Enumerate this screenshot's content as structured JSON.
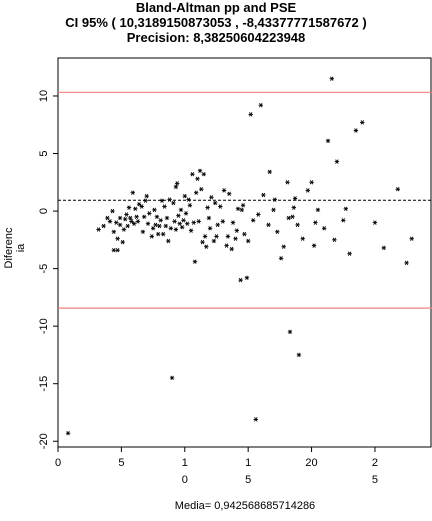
{
  "chart_data": {
    "type": "scatter",
    "title": "Bland-Altman  pp and PSE",
    "subtitle": "CI 95% ( 10,3189150873053 , -8,43377771587672 )",
    "precision_line": "Precision:  8,38250604223948",
    "xlabel": "Media= 0,942568685714286",
    "ylabel_lines": [
      "Diferenc",
      "ia"
    ],
    "ylim": [
      -20.5,
      13.3
    ],
    "xlim": [
      0,
      29.5
    ],
    "y_ticks": [
      {
        "value": 10,
        "label": "10"
      },
      {
        "value": 5,
        "label": "5"
      },
      {
        "value": 0,
        "label": "0"
      },
      {
        "value": -5,
        "label": "-5"
      },
      {
        "value": -10,
        "label": "-10"
      },
      {
        "value": -15,
        "label": "-15"
      },
      {
        "value": -20,
        "label": "-20"
      }
    ],
    "x_ticks": [
      {
        "value": 0,
        "label": "0",
        "sub": ""
      },
      {
        "value": 5,
        "label": "5",
        "sub": ""
      },
      {
        "value": 10,
        "label": "1",
        "sub": "0"
      },
      {
        "value": 15,
        "label": "1",
        "sub": "5"
      },
      {
        "value": 20,
        "label": "20",
        "sub": ""
      },
      {
        "value": 25,
        "label": "2",
        "sub": "5"
      }
    ],
    "reference_lines": {
      "upper": 10.3189150873053,
      "mean": 0.942568685714286,
      "lower": -8.43377771587672
    },
    "points": [
      [
        0.8,
        -19.3
      ],
      [
        3.2,
        -1.6
      ],
      [
        3.6,
        -1.3
      ],
      [
        3.9,
        -0.6
      ],
      [
        4.1,
        -0.9
      ],
      [
        4.3,
        0.0
      ],
      [
        4.4,
        -3.4
      ],
      [
        4.4,
        -1.8
      ],
      [
        4.6,
        -1.0
      ],
      [
        4.7,
        -2.4
      ],
      [
        4.7,
        -3.4
      ],
      [
        4.9,
        -1.2
      ],
      [
        4.9,
        -0.6
      ],
      [
        5.1,
        -2.7
      ],
      [
        5.2,
        -1.6
      ],
      [
        5.3,
        -0.7
      ],
      [
        5.4,
        -0.3
      ],
      [
        5.5,
        -1.3
      ],
      [
        5.6,
        0.3
      ],
      [
        5.7,
        -0.6
      ],
      [
        5.8,
        -0.9
      ],
      [
        5.9,
        1.6
      ],
      [
        6.0,
        -1.1
      ],
      [
        6.1,
        0.2
      ],
      [
        6.2,
        -0.5
      ],
      [
        6.3,
        -0.9
      ],
      [
        6.4,
        0.6
      ],
      [
        6.6,
        0.4
      ],
      [
        6.7,
        -1.8
      ],
      [
        6.8,
        -0.5
      ],
      [
        6.9,
        0.9
      ],
      [
        7.0,
        1.3
      ],
      [
        7.1,
        -1.1
      ],
      [
        7.2,
        -0.2
      ],
      [
        7.4,
        -2.2
      ],
      [
        7.5,
        -1.5
      ],
      [
        7.6,
        0.1
      ],
      [
        7.7,
        -1.2
      ],
      [
        7.8,
        -0.5
      ],
      [
        7.9,
        -2.0
      ],
      [
        8.0,
        -1.3
      ],
      [
        8.1,
        -0.8
      ],
      [
        8.2,
        0.9
      ],
      [
        8.3,
        -2.0
      ],
      [
        8.4,
        0.4
      ],
      [
        8.5,
        -1.3
      ],
      [
        8.6,
        -0.6
      ],
      [
        8.7,
        -2.6
      ],
      [
        8.8,
        1.0
      ],
      [
        8.9,
        -1.5
      ],
      [
        9.0,
        -14.5
      ],
      [
        9.1,
        0.7
      ],
      [
        9.2,
        -0.9
      ],
      [
        9.3,
        -1.6
      ],
      [
        9.3,
        2.1
      ],
      [
        9.4,
        2.4
      ],
      [
        9.5,
        -0.4
      ],
      [
        9.6,
        -1.1
      ],
      [
        9.7,
        0.1
      ],
      [
        9.8,
        -1.4
      ],
      [
        9.9,
        -0.8
      ],
      [
        10.0,
        1.3
      ],
      [
        10.1,
        -0.2
      ],
      [
        10.2,
        -1.1
      ],
      [
        10.3,
        1.0
      ],
      [
        10.4,
        0.5
      ],
      [
        10.5,
        -1.7
      ],
      [
        10.6,
        3.2
      ],
      [
        10.7,
        -1.0
      ],
      [
        10.8,
        -4.4
      ],
      [
        10.9,
        1.6
      ],
      [
        11.0,
        2.8
      ],
      [
        11.1,
        -0.9
      ],
      [
        11.2,
        3.5
      ],
      [
        11.3,
        1.9
      ],
      [
        11.4,
        -2.7
      ],
      [
        11.5,
        3.2
      ],
      [
        11.6,
        -2.2
      ],
      [
        11.7,
        -3.1
      ],
      [
        11.8,
        0.3
      ],
      [
        11.9,
        -0.6
      ],
      [
        12.0,
        -1.5
      ],
      [
        12.1,
        1.2
      ],
      [
        12.3,
        -2.6
      ],
      [
        12.4,
        0.7
      ],
      [
        12.5,
        -2.2
      ],
      [
        12.6,
        -1.2
      ],
      [
        12.8,
        0.4
      ],
      [
        13.0,
        -0.9
      ],
      [
        13.1,
        1.8
      ],
      [
        13.3,
        -3.0
      ],
      [
        13.4,
        -2.2
      ],
      [
        13.5,
        1.5
      ],
      [
        13.7,
        -3.3
      ],
      [
        13.8,
        -1.0
      ],
      [
        14.0,
        -2.4
      ],
      [
        14.1,
        -1.7
      ],
      [
        14.2,
        0.2
      ],
      [
        14.4,
        -6.0
      ],
      [
        14.5,
        0.1
      ],
      [
        14.6,
        0.5
      ],
      [
        14.7,
        -2.0
      ],
      [
        14.9,
        -5.8
      ],
      [
        15.0,
        -2.6
      ],
      [
        15.2,
        8.4
      ],
      [
        15.4,
        -0.8
      ],
      [
        15.6,
        -18.1
      ],
      [
        15.8,
        -0.3
      ],
      [
        16.0,
        9.2
      ],
      [
        16.2,
        1.4
      ],
      [
        16.6,
        -1.2
      ],
      [
        16.7,
        3.4
      ],
      [
        17.0,
        0.1
      ],
      [
        17.1,
        1.0
      ],
      [
        17.3,
        -1.8
      ],
      [
        17.6,
        -4.1
      ],
      [
        17.8,
        -3.1
      ],
      [
        18.1,
        2.5
      ],
      [
        18.2,
        -0.6
      ],
      [
        18.3,
        -10.5
      ],
      [
        18.5,
        -0.5
      ],
      [
        18.6,
        0.3
      ],
      [
        18.7,
        1.1
      ],
      [
        18.9,
        -1.2
      ],
      [
        19.0,
        -12.5
      ],
      [
        19.3,
        -2.4
      ],
      [
        19.7,
        1.8
      ],
      [
        20.0,
        2.5
      ],
      [
        20.2,
        -3.0
      ],
      [
        20.3,
        -1.0
      ],
      [
        20.5,
        0.1
      ],
      [
        21.0,
        -1.5
      ],
      [
        21.3,
        6.1
      ],
      [
        21.6,
        11.5
      ],
      [
        21.8,
        -2.5
      ],
      [
        22.0,
        4.3
      ],
      [
        22.5,
        -0.8
      ],
      [
        22.7,
        0.2
      ],
      [
        23.0,
        -3.7
      ],
      [
        23.5,
        7.0
      ],
      [
        24.0,
        7.7
      ],
      [
        25.0,
        -1.0
      ],
      [
        25.7,
        -3.2
      ],
      [
        26.8,
        1.9
      ],
      [
        27.5,
        -4.5
      ],
      [
        27.9,
        -2.4
      ]
    ]
  }
}
